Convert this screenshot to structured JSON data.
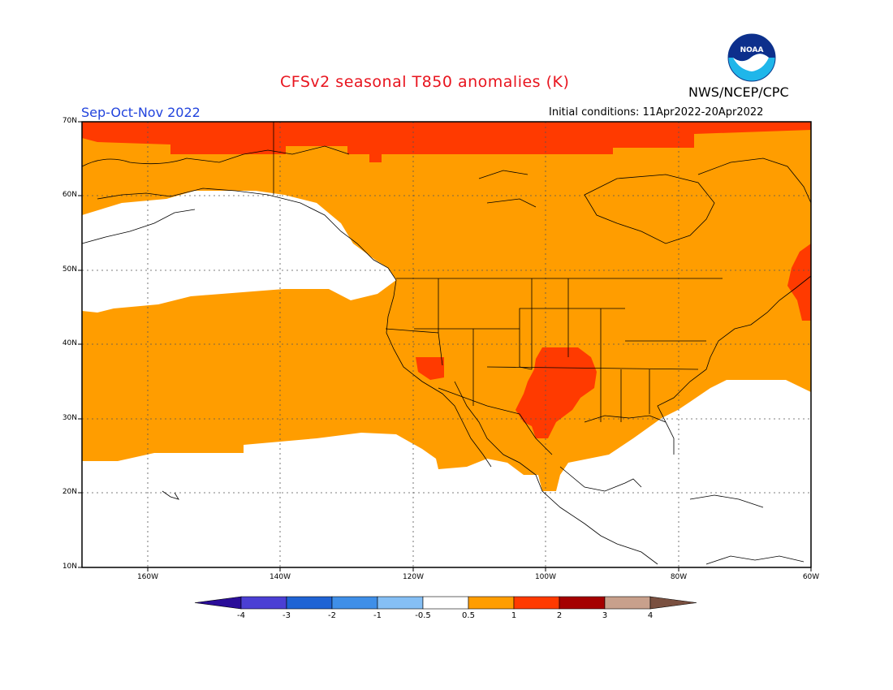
{
  "title": "CFSv2 seasonal T850 anomalies (K)",
  "period": "Sep-Oct-Nov 2022",
  "agency": "NWS/NCEP/CPC",
  "logo_text": "NOAA",
  "initial_conditions": "Initial conditions: 11Apr2022-20Apr2022",
  "lat_labels": [
    "70N",
    "60N",
    "50N",
    "40N",
    "30N",
    "20N",
    "10N"
  ],
  "lon_labels": [
    "160W",
    "140W",
    "120W",
    "100W",
    "80W",
    "60W"
  ],
  "colorbar": {
    "labels": [
      "-4",
      "-3",
      "-2",
      "-1",
      "-0.5",
      "0.5",
      "1",
      "2",
      "3",
      "4"
    ],
    "colors": [
      "#2a0d99",
      "#4b3fd4",
      "#1f63d4",
      "#3f8fe8",
      "#85bff5",
      "#ffffff",
      "#ff9d00",
      "#ff3a00",
      "#a50000",
      "#c8a08c",
      "#7a5040"
    ]
  },
  "colors": {
    "no_anomaly": "#ffffff",
    "warm1": "#ff9d00",
    "warm2": "#ff3a00"
  }
}
